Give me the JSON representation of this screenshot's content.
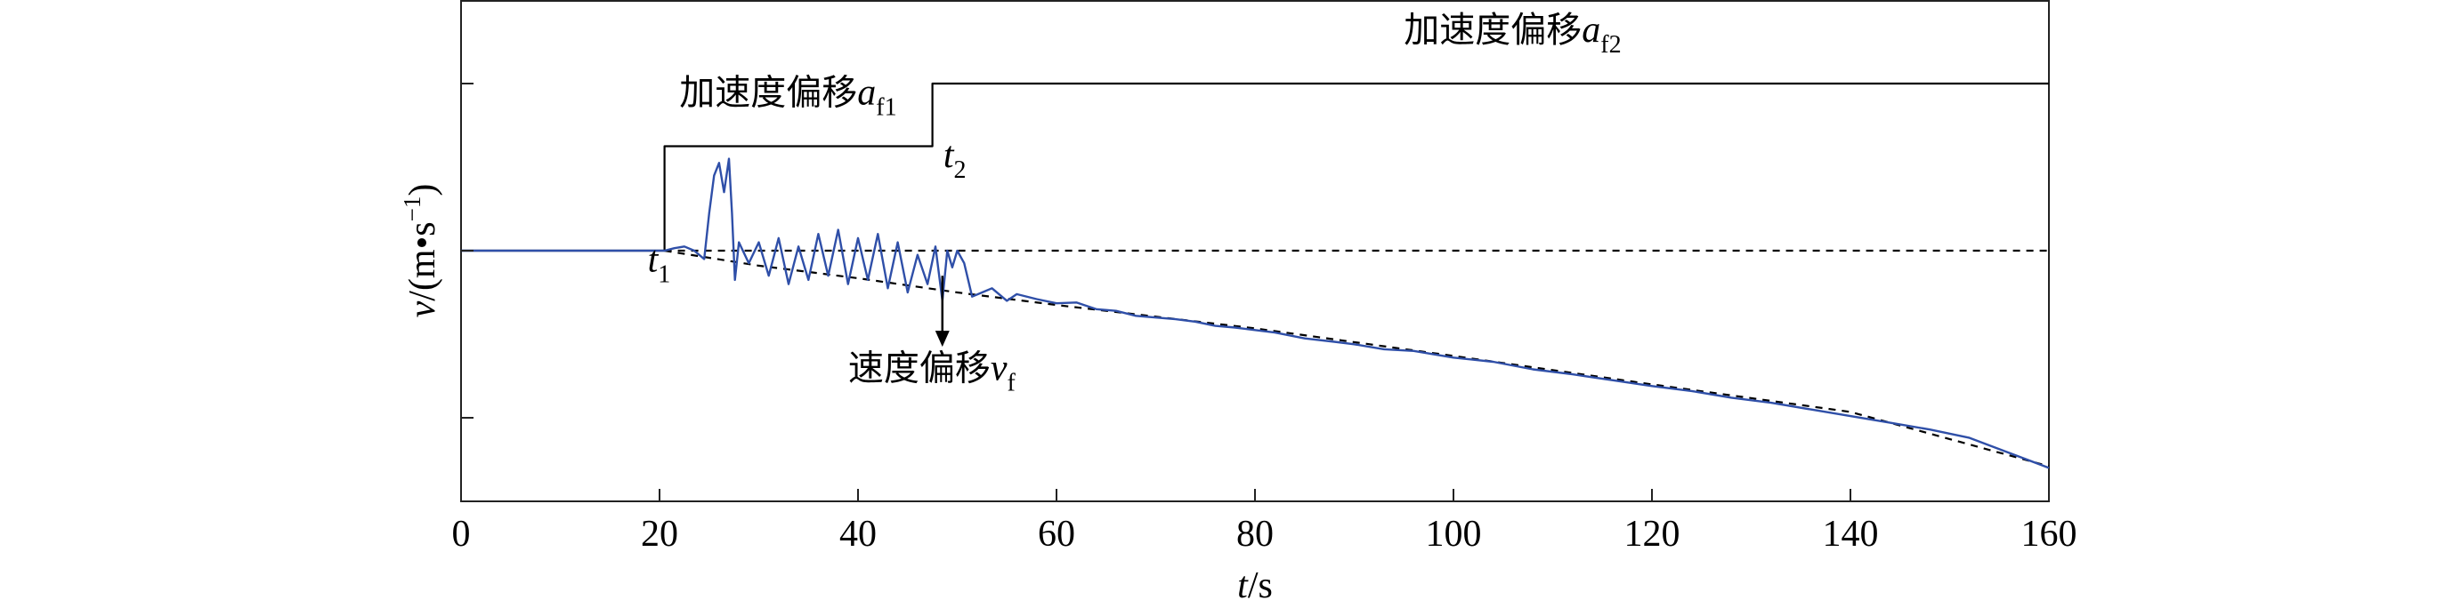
{
  "chart_data": {
    "type": "line",
    "xlabel_var": "t",
    "xlabel_unit": "/s",
    "ylabel_var": "v",
    "ylabel_unit": "/(m•s",
    "ylabel_exp": "−1",
    "ylabel_close": ")",
    "xlim": [
      0,
      160
    ],
    "ylim": [
      -3,
      3
    ],
    "x_ticks": [
      0,
      20,
      40,
      60,
      80,
      100,
      120,
      140,
      160
    ],
    "x_tick_labels": [
      "0",
      "20",
      "40",
      "60",
      "80",
      "100",
      "120",
      "140",
      "160"
    ],
    "y_ticks": [
      -2,
      0,
      2
    ],
    "grid": false,
    "series": [
      {
        "role": "acceleration offset step",
        "color": "#000000",
        "style": "solid",
        "points": [
          [
            0,
            0
          ],
          [
            20.5,
            0
          ],
          [
            20.5,
            1.25
          ],
          [
            47.5,
            1.25
          ],
          [
            47.5,
            2
          ],
          [
            160,
            2
          ]
        ]
      },
      {
        "role": "zero reference",
        "color": "#000000",
        "style": "dashed",
        "points": [
          [
            20.5,
            0
          ],
          [
            160,
            0
          ]
        ]
      },
      {
        "role": "velocity offset trend",
        "color": "#000000",
        "style": "dashed",
        "points": [
          [
            20.5,
            0
          ],
          [
            30,
            -0.18
          ],
          [
            40,
            -0.33
          ],
          [
            50,
            -0.5
          ],
          [
            60,
            -0.65
          ],
          [
            80,
            -0.93
          ],
          [
            100,
            -1.26
          ],
          [
            120,
            -1.6
          ],
          [
            140,
            -1.93
          ],
          [
            160,
            -2.58
          ]
        ]
      },
      {
        "role": "velocity measurement",
        "color": "#2f4fa8",
        "style": "solid",
        "points": [
          [
            0,
            0
          ],
          [
            20.5,
            0
          ],
          [
            21.5,
            0.03
          ],
          [
            22.5,
            0.05
          ],
          [
            23.5,
            0.0
          ],
          [
            24.5,
            -0.1
          ],
          [
            25,
            0.45
          ],
          [
            25.5,
            0.9
          ],
          [
            26,
            1.05
          ],
          [
            26.5,
            0.7
          ],
          [
            27,
            1.1
          ],
          [
            27.3,
            0.45
          ],
          [
            27.6,
            -0.35
          ],
          [
            28,
            0.1
          ],
          [
            29,
            -0.15
          ],
          [
            30,
            0.1
          ],
          [
            31,
            -0.3
          ],
          [
            32,
            0.15
          ],
          [
            33,
            -0.4
          ],
          [
            34,
            0.05
          ],
          [
            35,
            -0.35
          ],
          [
            36,
            0.2
          ],
          [
            37,
            -0.3
          ],
          [
            38,
            0.25
          ],
          [
            39,
            -0.4
          ],
          [
            40,
            0.15
          ],
          [
            41,
            -0.35
          ],
          [
            42,
            0.2
          ],
          [
            43,
            -0.45
          ],
          [
            44,
            0.1
          ],
          [
            45,
            -0.5
          ],
          [
            46,
            -0.05
          ],
          [
            47,
            -0.4
          ],
          [
            47.8,
            0.05
          ],
          [
            48.5,
            -0.6
          ],
          [
            49,
            0.0
          ],
          [
            49.5,
            -0.2
          ],
          [
            50,
            0.0
          ],
          [
            50.7,
            -0.15
          ],
          [
            51.5,
            -0.55
          ],
          [
            52.5,
            -0.5
          ],
          [
            53.5,
            -0.45
          ],
          [
            55,
            -0.6
          ],
          [
            56,
            -0.52
          ],
          [
            58,
            -0.58
          ],
          [
            60,
            -0.63
          ],
          [
            62,
            -0.62
          ],
          [
            64,
            -0.7
          ],
          [
            66,
            -0.72
          ],
          [
            68,
            -0.78
          ],
          [
            70,
            -0.8
          ],
          [
            72,
            -0.82
          ],
          [
            74,
            -0.85
          ],
          [
            76,
            -0.9
          ],
          [
            78,
            -0.92
          ],
          [
            80,
            -0.95
          ],
          [
            82,
            -0.98
          ],
          [
            85,
            -1.05
          ],
          [
            88,
            -1.09
          ],
          [
            90,
            -1.12
          ],
          [
            93,
            -1.18
          ],
          [
            96,
            -1.2
          ],
          [
            100,
            -1.28
          ],
          [
            104,
            -1.33
          ],
          [
            108,
            -1.42
          ],
          [
            112,
            -1.48
          ],
          [
            116,
            -1.55
          ],
          [
            120,
            -1.62
          ],
          [
            124,
            -1.68
          ],
          [
            128,
            -1.76
          ],
          [
            132,
            -1.82
          ],
          [
            136,
            -1.9
          ],
          [
            140,
            -1.98
          ],
          [
            144,
            -2.06
          ],
          [
            148,
            -2.14
          ],
          [
            152,
            -2.24
          ],
          [
            156,
            -2.42
          ],
          [
            160,
            -2.6
          ]
        ]
      }
    ],
    "annotations": [
      {
        "kind": "label",
        "main": "加速度偏移",
        "var": "a",
        "sub": "f2",
        "at": [
          95,
          2.5
        ]
      },
      {
        "kind": "label",
        "main": "加速度偏移",
        "var": "a",
        "sub": "f1",
        "at": [
          22,
          1.75
        ]
      },
      {
        "kind": "label",
        "main": "",
        "var": "t",
        "sub": "2",
        "at": [
          48.6,
          1.0
        ]
      },
      {
        "kind": "label",
        "main": "",
        "var": "t",
        "sub": "1",
        "at": [
          18.8,
          -0.25
        ]
      },
      {
        "kind": "label",
        "main": "速度偏移",
        "var": "v",
        "sub": "f",
        "at": [
          39,
          -1.55
        ]
      },
      {
        "kind": "arrow",
        "from": [
          48.5,
          -0.3
        ],
        "to": [
          48.5,
          -1.15
        ]
      }
    ]
  }
}
